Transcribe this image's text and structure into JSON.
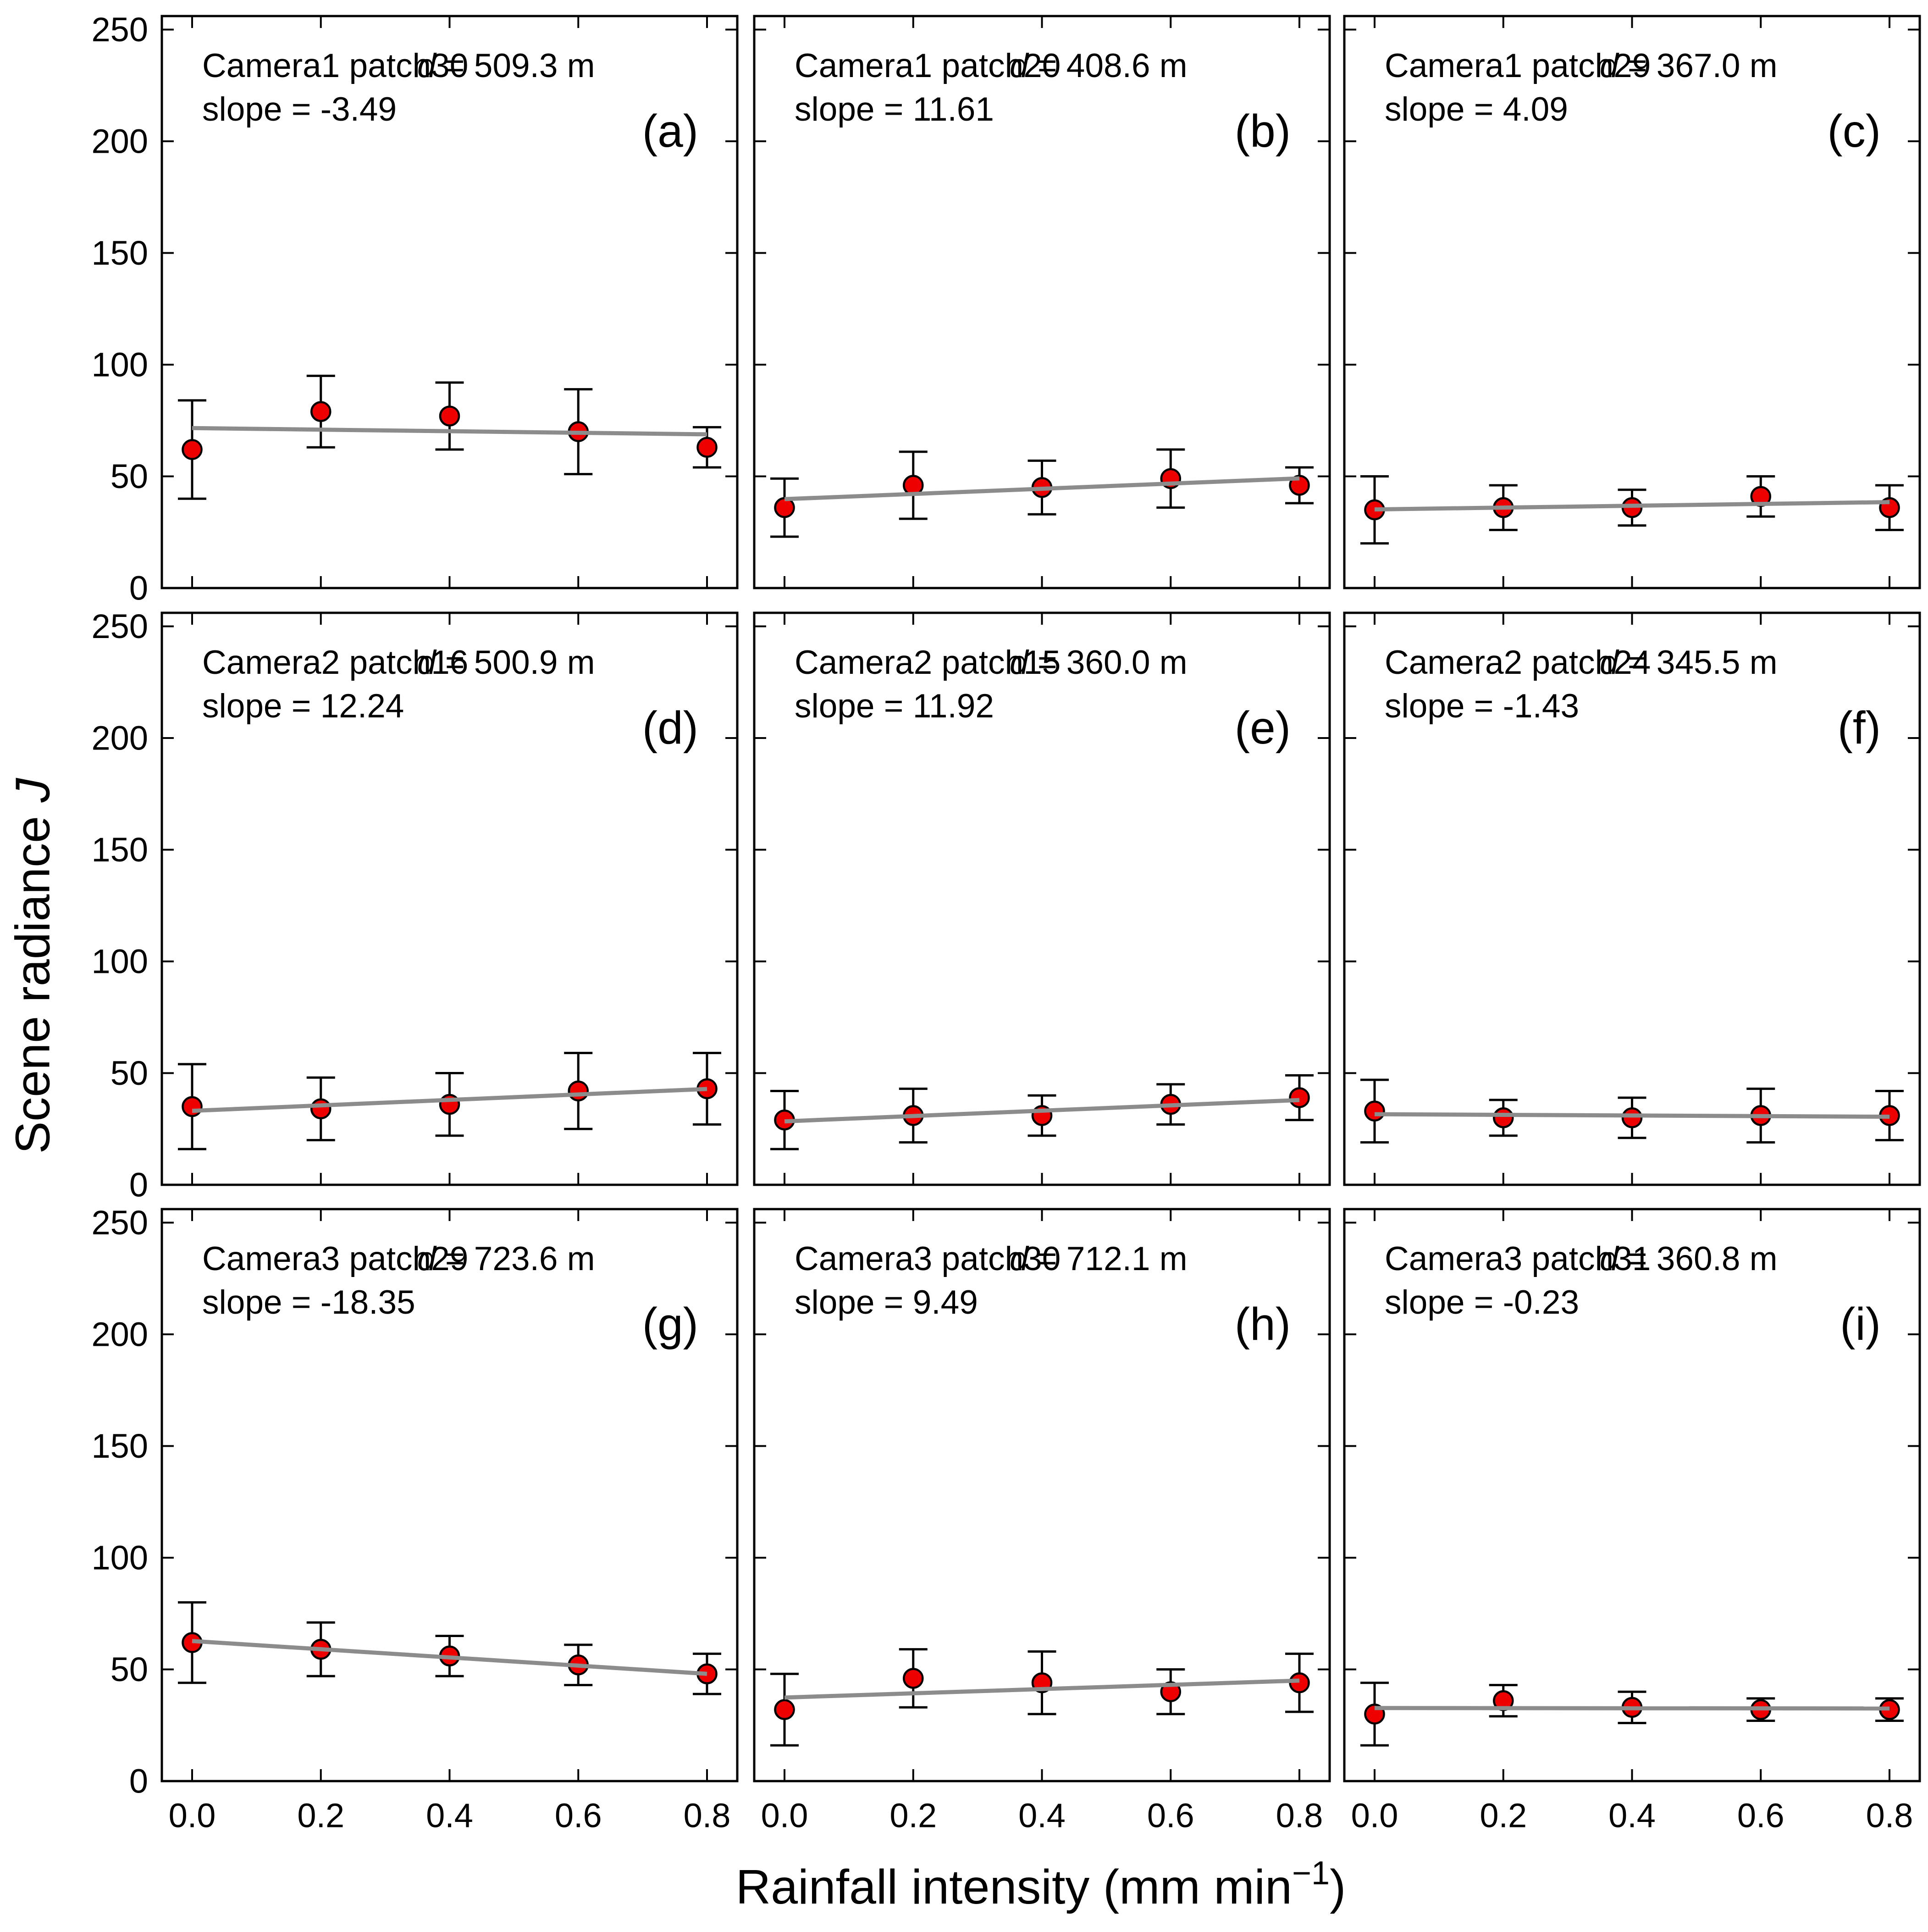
{
  "figure": {
    "ylabel": {
      "prefix": "Scene radiance ",
      "symbol": "J"
    },
    "xlabel": {
      "prefix": "Rainfall intensity (mm min",
      "sup": "−1",
      "suffix": ")"
    }
  },
  "axes": {
    "y_ticks": [
      0,
      50,
      100,
      150,
      200,
      250
    ],
    "y_tick_labels": [
      "0",
      "50",
      "100",
      "150",
      "200",
      "250"
    ],
    "x_ticks": [
      0.0,
      0.2,
      0.4,
      0.6,
      0.8
    ],
    "x_tick_labels": [
      "0.0",
      "0.2",
      "0.4",
      "0.6",
      "0.8"
    ],
    "ylim": [
      0,
      256
    ],
    "grid": "off",
    "tick_label_columns": "y labels on left column only, x labels on bottom row only"
  },
  "style": {
    "marker_fill": "#ee0000",
    "marker_edge": "#000000",
    "errorbar_color": "#000000",
    "fit_line_color": "#8c8c8c",
    "frame_color": "#000000"
  },
  "chart_data": [
    {
      "type": "scatter",
      "letter": "(a)",
      "title": "Camera1 patch30",
      "d_label": "d = 509.3 m",
      "slope_label": "slope = -3.49",
      "x": [
        0.0,
        0.2,
        0.4,
        0.6,
        0.8
      ],
      "y": [
        62,
        79,
        77,
        70,
        63
      ],
      "yerr": [
        22,
        16,
        15,
        19,
        9
      ],
      "fit": {
        "slope": -3.49,
        "intercept": 71.6
      }
    },
    {
      "type": "scatter",
      "letter": "(b)",
      "title": "Camera1 patch20",
      "d_label": "d = 408.6 m",
      "slope_label": "slope = 11.61",
      "x": [
        0.0,
        0.2,
        0.4,
        0.6,
        0.8
      ],
      "y": [
        36,
        46,
        45,
        49,
        46
      ],
      "yerr": [
        13,
        15,
        12,
        13,
        8
      ],
      "fit": {
        "slope": 11.61,
        "intercept": 39.8
      }
    },
    {
      "type": "scatter",
      "letter": "(c)",
      "title": "Camera1 patch29",
      "d_label": "d = 367.0 m",
      "slope_label": "slope = 4.09",
      "x": [
        0.0,
        0.2,
        0.4,
        0.6,
        0.8
      ],
      "y": [
        35,
        36,
        36,
        41,
        36
      ],
      "yerr": [
        15,
        10,
        8,
        9,
        10
      ],
      "fit": {
        "slope": 4.09,
        "intercept": 35.2
      }
    },
    {
      "type": "scatter",
      "letter": "(d)",
      "title": "Camera2 patch16",
      "d_label": "d = 500.9 m",
      "slope_label": "slope = 12.24",
      "x": [
        0.0,
        0.2,
        0.4,
        0.6,
        0.8
      ],
      "y": [
        35,
        34,
        36,
        42,
        43
      ],
      "yerr": [
        19,
        14,
        14,
        17,
        16
      ],
      "fit": {
        "slope": 12.24,
        "intercept": 33.1
      }
    },
    {
      "type": "scatter",
      "letter": "(e)",
      "title": "Camera2 patch15",
      "d_label": "d = 360.0 m",
      "slope_label": "slope = 11.92",
      "x": [
        0.0,
        0.2,
        0.4,
        0.6,
        0.8
      ],
      "y": [
        29,
        31,
        31,
        36,
        39
      ],
      "yerr": [
        13,
        12,
        9,
        9,
        10
      ],
      "fit": {
        "slope": 11.92,
        "intercept": 28.4
      }
    },
    {
      "type": "scatter",
      "letter": "(f)",
      "title": "Camera2 patch24",
      "d_label": "d = 345.5 m",
      "slope_label": "slope = -1.43",
      "x": [
        0.0,
        0.2,
        0.4,
        0.6,
        0.8
      ],
      "y": [
        33,
        30,
        30,
        31,
        31
      ],
      "yerr": [
        14,
        8,
        9,
        12,
        11
      ],
      "fit": {
        "slope": -1.43,
        "intercept": 31.6
      }
    },
    {
      "type": "scatter",
      "letter": "(g)",
      "title": "Camera3 patch29",
      "d_label": "d = 723.6 m",
      "slope_label": "slope = -18.35",
      "x": [
        0.0,
        0.2,
        0.4,
        0.6,
        0.8
      ],
      "y": [
        62,
        59,
        56,
        52,
        48
      ],
      "yerr": [
        18,
        12,
        9,
        9,
        9
      ],
      "fit": {
        "slope": -18.35,
        "intercept": 62.7
      }
    },
    {
      "type": "scatter",
      "letter": "(h)",
      "title": "Camera3 patch30",
      "d_label": "d = 712.1 m",
      "slope_label": "slope = 9.49",
      "x": [
        0.0,
        0.2,
        0.4,
        0.6,
        0.8
      ],
      "y": [
        32,
        46,
        44,
        40,
        44
      ],
      "yerr": [
        16,
        13,
        14,
        10,
        13
      ],
      "fit": {
        "slope": 9.49,
        "intercept": 37.4
      }
    },
    {
      "type": "scatter",
      "letter": "(i)",
      "title": "Camera3 patch31",
      "d_label": "d = 360.8 m",
      "slope_label": "slope = -0.23",
      "x": [
        0.0,
        0.2,
        0.4,
        0.6,
        0.8
      ],
      "y": [
        30,
        36,
        33,
        32,
        32
      ],
      "yerr": [
        14,
        7,
        7,
        5,
        5
      ],
      "fit": {
        "slope": -0.23,
        "intercept": 32.7
      }
    }
  ]
}
